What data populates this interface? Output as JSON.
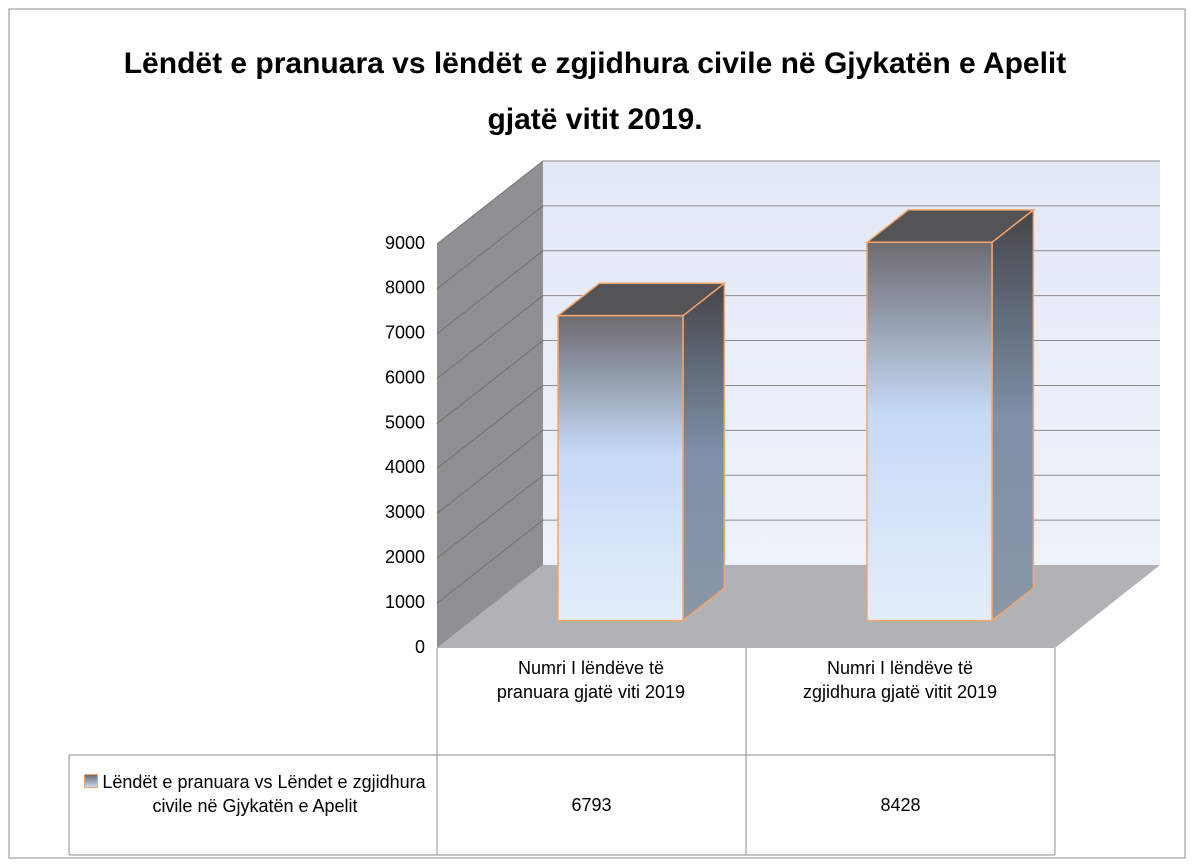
{
  "chart_data": {
    "type": "bar3d",
    "title": "Lëndët e pranuara vs lëndët e zgjidhura civile në Gjykatën e Apelit gjatë vitit 2019.",
    "categories": [
      "Numri I lëndëve të pranuara gjatë viti 2019",
      "Numri I lëndëve të zgjidhura gjatë vitit 2019"
    ],
    "series": [
      {
        "name": "Lëndët e pranuara vs Lëndet e zgjidhura civile në Gjykatën e Apelit",
        "color": "#c6dbf7",
        "values": [
          6793,
          8428
        ]
      }
    ],
    "ylim": [
      0,
      9000
    ],
    "yticks": [
      0,
      1000,
      2000,
      3000,
      4000,
      5000,
      6000,
      7000,
      8000,
      9000
    ],
    "grid": true,
    "legend": "table"
  }
}
